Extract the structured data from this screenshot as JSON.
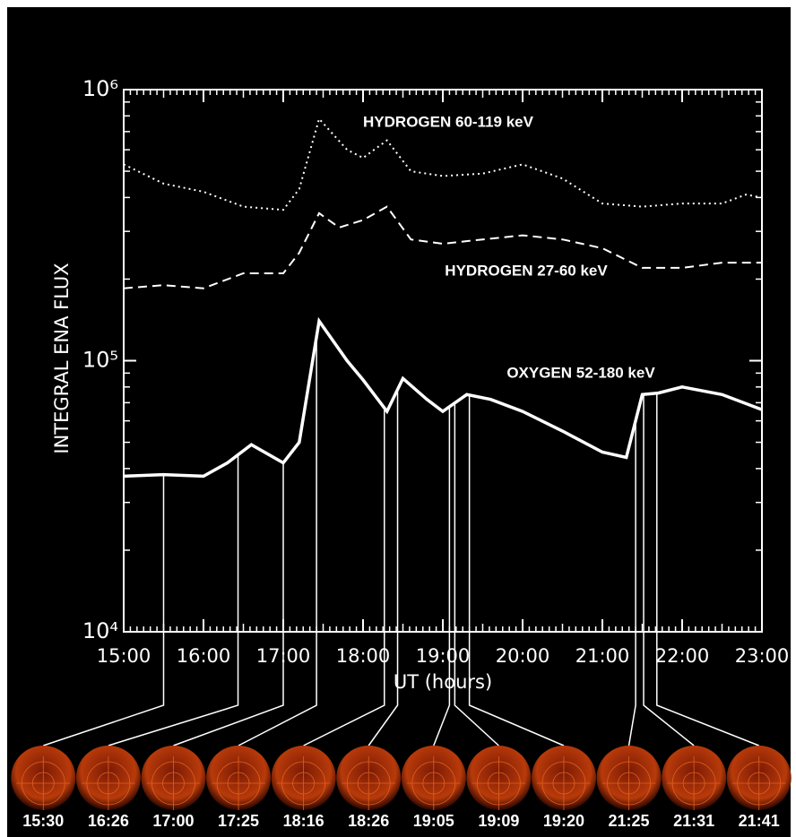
{
  "chart_data": {
    "type": "line",
    "ylabel": "INTEGRAL ENA FLUX",
    "xlabel": "UT (hours)",
    "log_y": true,
    "background": "#000000",
    "xlim": [
      15,
      23
    ],
    "ylim": [
      10000,
      1000000
    ],
    "xticks": [
      {
        "value": 15,
        "label": "15:00"
      },
      {
        "value": 16,
        "label": "16:00"
      },
      {
        "value": 17,
        "label": "17:00"
      },
      {
        "value": 18,
        "label": "18:00"
      },
      {
        "value": 19,
        "label": "19:00"
      },
      {
        "value": 20,
        "label": "20:00"
      },
      {
        "value": 21,
        "label": "21:00"
      },
      {
        "value": 22,
        "label": "22:00"
      },
      {
        "value": 23,
        "label": "23:00"
      }
    ],
    "yticks": [
      {
        "value": 10000,
        "label": "10⁴"
      },
      {
        "value": 100000,
        "label": "10⁵"
      },
      {
        "value": 1000000,
        "label": "10⁶"
      }
    ],
    "series": [
      {
        "name": "HYDROGEN 60-119 keV",
        "color": "#ffffff",
        "style": "dotted",
        "x": [
          15,
          15.5,
          16,
          16.5,
          17,
          17.2,
          17.45,
          17.8,
          18,
          18.3,
          18.6,
          19,
          19.5,
          20,
          20.5,
          21,
          21.5,
          22,
          22.5,
          22.8,
          23
        ],
        "values": [
          530000,
          450000,
          420000,
          370000,
          360000,
          430000,
          780000,
          600000,
          560000,
          650000,
          500000,
          480000,
          490000,
          530000,
          470000,
          380000,
          370000,
          380000,
          380000,
          410000,
          400000
        ]
      },
      {
        "name": "HYDROGEN 27-60 keV",
        "color": "#ffffff",
        "style": "dashed",
        "x": [
          15,
          15.5,
          16,
          16.5,
          17,
          17.2,
          17.45,
          17.7,
          18,
          18.3,
          18.6,
          19,
          19.5,
          20,
          20.5,
          21,
          21.5,
          22,
          22.5,
          23
        ],
        "values": [
          185000,
          190000,
          185000,
          210000,
          210000,
          250000,
          350000,
          310000,
          330000,
          370000,
          280000,
          270000,
          280000,
          290000,
          280000,
          260000,
          220000,
          220000,
          230000,
          230000
        ]
      },
      {
        "name": "OXYGEN 52-180 keV",
        "color": "#ffffff",
        "style": "solid",
        "x": [
          15,
          15.5,
          16,
          16.3,
          16.6,
          17,
          17.2,
          17.45,
          17.8,
          18,
          18.3,
          18.5,
          18.8,
          19,
          19.3,
          19.6,
          20,
          20.5,
          21,
          21.3,
          21.5,
          21.7,
          22,
          22.5,
          23
        ],
        "values": [
          37500,
          38000,
          37500,
          42000,
          49000,
          42000,
          50000,
          140000,
          100000,
          85000,
          65000,
          86000,
          72000,
          65000,
          75000,
          72000,
          65000,
          55000,
          46000,
          44000,
          75000,
          76000,
          80000,
          75000,
          66000
        ]
      }
    ],
    "image_times": [
      {
        "value": 15.5,
        "label": "15:30"
      },
      {
        "value": 16.433,
        "label": "16:26"
      },
      {
        "value": 17,
        "label": "17:00"
      },
      {
        "value": 17.417,
        "label": "17:25"
      },
      {
        "value": 18.267,
        "label": "18:16"
      },
      {
        "value": 18.433,
        "label": "18:26"
      },
      {
        "value": 19.083,
        "label": "19:05"
      },
      {
        "value": 19.15,
        "label": "19:09"
      },
      {
        "value": 19.333,
        "label": "19:20"
      },
      {
        "value": 21.417,
        "label": "21:25"
      },
      {
        "value": 21.517,
        "label": "21:31"
      },
      {
        "value": 21.683,
        "label": "21:41"
      }
    ]
  }
}
